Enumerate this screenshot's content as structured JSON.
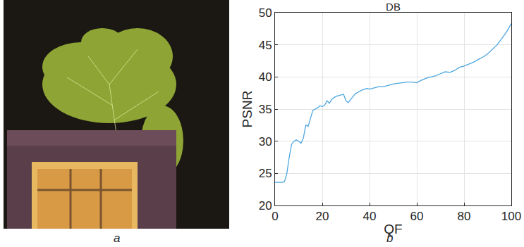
{
  "chart_data": {
    "type": "line",
    "title": "DB",
    "x_label": "QF",
    "y_label": "PSNR",
    "panel_labels": [
      "a",
      "b"
    ],
    "x": [
      0,
      1,
      2,
      3,
      4,
      5,
      6,
      7,
      8,
      9,
      10,
      11,
      12,
      13,
      14,
      15,
      16,
      17,
      18,
      19,
      20,
      21,
      22,
      23,
      24,
      25,
      26,
      27,
      28,
      29,
      30,
      31,
      32,
      33,
      34,
      35,
      36,
      37,
      38,
      39,
      40,
      42,
      44,
      46,
      48,
      50,
      52,
      54,
      56,
      58,
      60,
      62,
      64,
      66,
      68,
      70,
      72,
      74,
      76,
      78,
      80,
      82,
      84,
      86,
      88,
      90,
      92,
      94,
      96,
      98,
      100
    ],
    "series": [
      {
        "name": "DB",
        "color": "#4da6e0",
        "values": [
          23.6,
          23.6,
          23.6,
          23.6,
          23.7,
          25,
          27.5,
          29.5,
          30,
          30.2,
          30,
          29.7,
          30.5,
          32.5,
          32.3,
          33.5,
          34.8,
          35,
          35.2,
          35.5,
          35.4,
          35.6,
          36.3,
          35.9,
          36.5,
          36.8,
          37,
          37.1,
          37.2,
          37.3,
          36.3,
          36,
          36.5,
          37,
          37.4,
          37.6,
          37.8,
          38,
          38.1,
          38.2,
          38.1,
          38.3,
          38.5,
          38.5,
          38.7,
          38.9,
          39,
          39.1,
          39.2,
          39.2,
          39.1,
          39.5,
          39.8,
          40,
          40.2,
          40.5,
          40.8,
          40.7,
          41,
          41.5,
          41.7,
          42,
          42.3,
          42.7,
          43.1,
          43.6,
          44.3,
          45,
          46,
          47,
          48.3
        ]
      }
    ],
    "xlim": [
      0,
      100
    ],
    "xticks": [
      0,
      20,
      40,
      60,
      80,
      100
    ],
    "ylim": [
      20,
      50
    ],
    "yticks": [
      20,
      25,
      30,
      35,
      40,
      45,
      50
    ],
    "grid": true
  }
}
